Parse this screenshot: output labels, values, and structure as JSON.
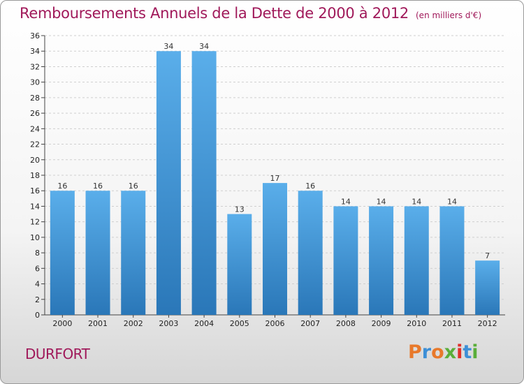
{
  "header": {
    "title": "Remboursements Annuels de la Dette de 2000 à 2012",
    "unit": "(en milliers d'€)"
  },
  "commune": "DURFORT",
  "logo": {
    "text": "Proxiti",
    "colors": [
      "#e8792b",
      "#3d8fd6",
      "#e8792b",
      "#5aae3a",
      "#e0302a",
      "#3d8fd6",
      "#5aae3a"
    ]
  },
  "chart_data": {
    "type": "bar",
    "categories": [
      "2000",
      "2001",
      "2002",
      "2003",
      "2004",
      "2005",
      "2006",
      "2007",
      "2008",
      "2009",
      "2010",
      "2011",
      "2012"
    ],
    "values": [
      16,
      16,
      16,
      34,
      34,
      13,
      17,
      16,
      14,
      14,
      14,
      14,
      7
    ],
    "ylim": [
      0,
      36
    ],
    "yticks": [
      0,
      2,
      4,
      6,
      8,
      10,
      12,
      14,
      16,
      18,
      20,
      22,
      24,
      26,
      28,
      30,
      32,
      34,
      36
    ],
    "grid": "horizontal dashed",
    "bar_color_top": "#5aaeea",
    "bar_color_bottom": "#2a77b8"
  }
}
